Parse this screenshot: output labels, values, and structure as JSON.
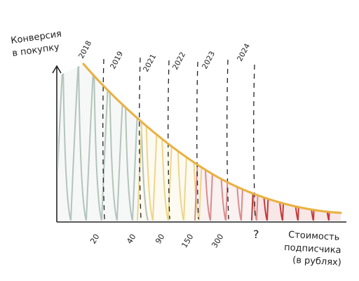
{
  "chart_data": {
    "type": "area",
    "ylabel": [
      "Конверсия",
      "в покупку"
    ],
    "xlabel": [
      "Стоимость",
      "подписчика",
      "(в рублях)"
    ],
    "x_tick_labels": [
      "20",
      "40",
      "90",
      "150",
      "300",
      "?"
    ],
    "period_labels": [
      "2018",
      "2019",
      "2021",
      "2022",
      "2023",
      "2024"
    ],
    "grid": false,
    "legend": "none",
    "curve": "decreasing",
    "regions": [
      {
        "from_tick": "start",
        "to_tick": "40",
        "color": "#b3c4bc"
      },
      {
        "from_tick": "40",
        "to_tick": "150",
        "color": "#ecd68a"
      },
      {
        "from_tick": "150",
        "to_tick": "?",
        "color": "#d98c8c"
      },
      {
        "from_tick": "?",
        "to_tick": "end",
        "color": "#c43a3a"
      }
    ],
    "curve_color": "#eab040"
  }
}
